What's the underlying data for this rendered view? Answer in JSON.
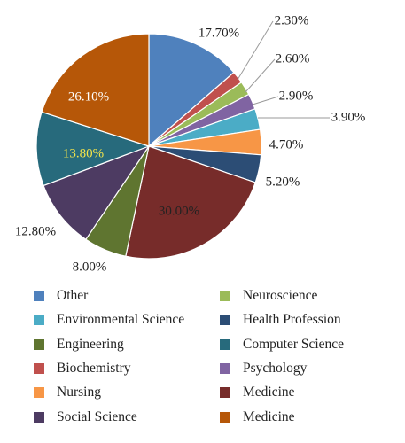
{
  "chart_data": {
    "type": "pie",
    "title": "",
    "slices": [
      {
        "label": "Other",
        "value": 17.7,
        "display": "17.70%",
        "color": "#4f81bd",
        "label_color": "#222222"
      },
      {
        "label": "Biochemistry",
        "value": 2.3,
        "display": "2.30%",
        "color": "#c0504d",
        "label_color": "#222222"
      },
      {
        "label": "Neuroscience",
        "value": 2.6,
        "display": "2.60%",
        "color": "#9bbb59",
        "label_color": "#222222"
      },
      {
        "label": "Psychology",
        "value": 2.9,
        "display": "2.90%",
        "color": "#8064a2",
        "label_color": "#222222"
      },
      {
        "label": "Environmental Science",
        "value": 3.9,
        "display": "3.90%",
        "color": "#4bacc6",
        "label_color": "#222222"
      },
      {
        "label": "Nursing",
        "value": 4.7,
        "display": "4.70%",
        "color": "#f79646",
        "label_color": "#222222"
      },
      {
        "label": "Health Profession",
        "value": 5.2,
        "display": "5.20%",
        "color": "#2c4d75",
        "label_color": "#222222"
      },
      {
        "label": "Medicine",
        "value": 30.0,
        "display": "30.00%",
        "color": "#772c2a",
        "label_color": "#222222"
      },
      {
        "label": "Engineering",
        "value": 8.0,
        "display": "8.00%",
        "color": "#5f7530",
        "label_color": "#222222"
      },
      {
        "label": "Social Science",
        "value": 12.8,
        "display": "12.80%",
        "color": "#4d3b62",
        "label_color": "#222222"
      },
      {
        "label": "Computer Science",
        "value": 13.8,
        "display": "13.80%",
        "color": "#276a7c",
        "label_color": "#f2e34a"
      },
      {
        "label": "Medicine",
        "value": 26.1,
        "display": "26.10%",
        "color": "#b65708",
        "label_color": "#ffffff"
      }
    ],
    "legend": {
      "placement": "bottom",
      "columns": [
        [
          "Other",
          "Environmental Science",
          "Engineering",
          "Biochemistry",
          "Nursing",
          "Social Science"
        ],
        [
          "Neuroscience",
          "Health Profession",
          "Computer Science",
          "Psychology",
          "Medicine",
          "Medicine"
        ]
      ],
      "colors": [
        [
          "#4f81bd",
          "#4bacc6",
          "#5f7530",
          "#c0504d",
          "#f79646",
          "#4d3b62"
        ],
        [
          "#9bbb59",
          "#2c4d75",
          "#276a7c",
          "#8064a2",
          "#772c2a",
          "#b65708"
        ]
      ]
    }
  }
}
